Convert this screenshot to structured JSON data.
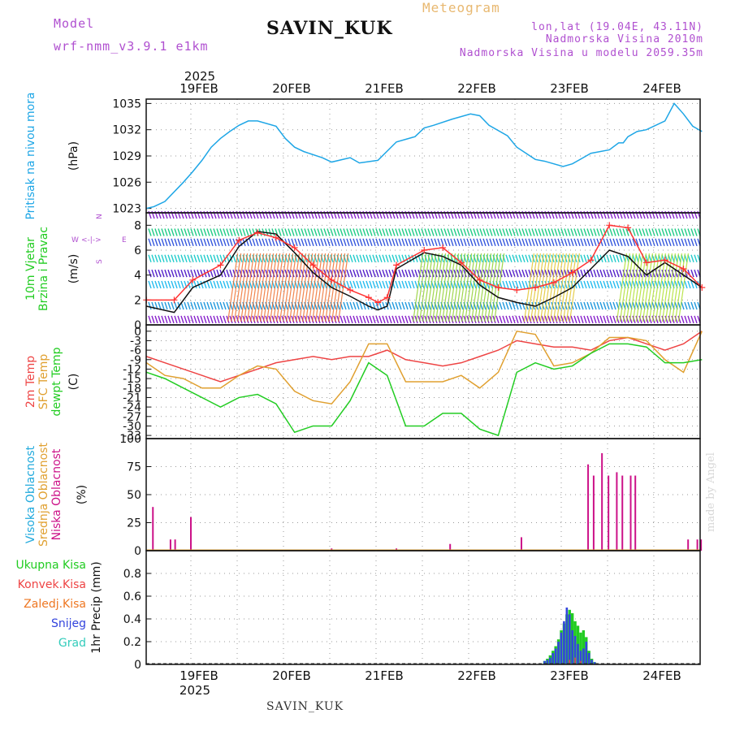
{
  "header": {
    "model_label": "Model",
    "model_value": "wrf-nmm_v3.9.1 e1km",
    "title": "SAVIN_KUK",
    "product": "Meteogram",
    "loc_line1": "lon,lat (19.04E, 43.11N)",
    "loc_line2": "Nadmorska Visina 2010m",
    "loc_line3": "Nadmorska Visina u modelu 2059.35m",
    "year_top": "2025",
    "year_bottom": "2025",
    "footer_station": "SAVIN_KUK",
    "credit": "made by Angel"
  },
  "colors": {
    "pressure": "#1ea6e6",
    "t2m": "#ee4444",
    "tsfc": "#e0a030",
    "dewpt": "#22cc22",
    "high_cloud": "#22aadd",
    "mid_cloud": "#e0a030",
    "low_cloud": "#cc1188",
    "total_precip": "#22cc22",
    "conv_precip": "#ee4444",
    "frozen_precip": "#ee7722",
    "snow": "#3344dd",
    "graupel": "#33ccbb",
    "gust_line": "#ff3333",
    "wind_line": "#111111"
  },
  "chart_data": [
    {
      "type": "line",
      "panel": "pressure",
      "ylabel_lines": [
        "Pritisak na nivou mora"
      ],
      "unit": "(hPa)",
      "ylim": [
        1022.5,
        1035.5
      ],
      "yticks": [
        "1023",
        "1026",
        "1029",
        "1032",
        "1035"
      ],
      "x_days": [
        "19FEB",
        "20FEB",
        "21FEB",
        "22FEB",
        "23FEB",
        "24FEB"
      ],
      "grid": true,
      "series": [
        {
          "x": [
            0,
            0.08,
            0.2,
            0.4,
            0.5,
            0.6,
            0.7,
            0.8,
            0.9,
            1.0,
            1.1,
            1.2,
            1.4,
            1.5,
            1.6,
            1.7,
            1.9,
            2.0,
            2.2,
            2.3,
            2.5,
            2.7,
            2.9,
            3.0,
            3.1,
            3.3,
            3.5,
            3.6,
            3.7,
            3.9,
            4.0,
            4.1,
            4.2,
            4.3,
            4.5,
            4.6,
            4.7,
            4.8,
            5.0,
            5.1,
            5.15,
            5.2,
            5.3,
            5.4,
            5.6,
            5.7,
            5.8,
            5.9,
            6.0
          ],
          "y": [
            1023.0,
            1023.2,
            1023.8,
            1026.0,
            1027.2,
            1028.5,
            1030.0,
            1031.0,
            1031.8,
            1032.5,
            1033.0,
            1033.0,
            1032.4,
            1031.0,
            1030.0,
            1029.5,
            1028.8,
            1028.3,
            1028.8,
            1028.2,
            1028.5,
            1030.6,
            1031.2,
            1032.2,
            1032.5,
            1033.2,
            1033.8,
            1033.6,
            1032.5,
            1031.3,
            1030.0,
            1029.3,
            1028.6,
            1028.4,
            1027.8,
            1028.1,
            1028.7,
            1029.3,
            1029.7,
            1030.5,
            1030.5,
            1031.2,
            1031.8,
            1032.0,
            1033.0,
            1035.0,
            1033.8,
            1032.4,
            1031.8
          ]
        }
      ]
    },
    {
      "type": "line",
      "panel": "wind",
      "ylabel_lines": [
        "10m Vjetar",
        "Brzina i Pravac"
      ],
      "unit": "(m/s)",
      "ylim": [
        0,
        9
      ],
      "yticks": [
        "0",
        "2",
        "4",
        "6",
        "8"
      ],
      "compass": {
        "n": "N",
        "s": "S",
        "e": "E",
        "w": "W"
      },
      "grid": true,
      "series": [
        {
          "name": "wind_speed",
          "x": [
            0,
            0.3,
            0.5,
            0.8,
            1.0,
            1.2,
            1.4,
            1.6,
            1.8,
            2.0,
            2.2,
            2.4,
            2.5,
            2.6,
            2.7,
            3.0,
            3.2,
            3.4,
            3.6,
            3.8,
            4.0,
            4.2,
            4.4,
            4.6,
            4.8,
            5.0,
            5.2,
            5.4,
            5.6,
            5.8,
            6.0
          ],
          "y": [
            1.5,
            1.0,
            3.0,
            4.0,
            6.3,
            7.5,
            7.3,
            5.8,
            4.2,
            3.0,
            2.3,
            1.5,
            1.2,
            1.5,
            4.5,
            5.8,
            5.5,
            4.8,
            3.2,
            2.2,
            1.8,
            1.5,
            2.2,
            3.0,
            4.5,
            6.0,
            5.5,
            4.0,
            5.0,
            4.0,
            3.0
          ]
        },
        {
          "name": "gust",
          "x": [
            0,
            0.3,
            0.5,
            0.8,
            1.0,
            1.2,
            1.4,
            1.6,
            1.8,
            2.0,
            2.2,
            2.4,
            2.5,
            2.6,
            2.7,
            3.0,
            3.2,
            3.4,
            3.6,
            3.8,
            4.0,
            4.2,
            4.4,
            4.6,
            4.8,
            5.0,
            5.2,
            5.4,
            5.6,
            5.8,
            6.0
          ],
          "y": [
            2.0,
            2.0,
            3.6,
            4.8,
            6.8,
            7.4,
            7.0,
            6.2,
            4.8,
            3.6,
            2.8,
            2.2,
            1.8,
            2.2,
            4.8,
            6.0,
            6.2,
            5.0,
            3.6,
            3.0,
            2.8,
            3.0,
            3.4,
            4.2,
            5.2,
            8.0,
            7.8,
            5.0,
            5.2,
            4.5,
            3.0
          ]
        }
      ]
    },
    {
      "type": "line",
      "panel": "temperature",
      "ylabel_lines": [
        "2m Temp",
        "SFC Temp",
        "dewpt Temp"
      ],
      "unit": "(C)",
      "ylim": [
        -34,
        2
      ],
      "yticks": [
        "0",
        "-3",
        "-6",
        "-9",
        "-12",
        "-15",
        "-18",
        "-21",
        "-24",
        "-27",
        "-30",
        "-33"
      ],
      "grid": true,
      "series": [
        {
          "name": "2m Temp",
          "x": [
            0,
            0.2,
            0.4,
            0.6,
            0.8,
            1.0,
            1.2,
            1.4,
            1.6,
            1.8,
            2.0,
            2.2,
            2.4,
            2.6,
            2.8,
            3.0,
            3.2,
            3.4,
            3.6,
            3.8,
            4.0,
            4.2,
            4.4,
            4.6,
            4.8,
            5.0,
            5.2,
            5.4,
            5.6,
            5.8,
            6.0
          ],
          "y": [
            -8,
            -10,
            -12,
            -14,
            -16,
            -14,
            -12,
            -10,
            -9,
            -8,
            -9,
            -8,
            -8,
            -6,
            -9,
            -10,
            -11,
            -10,
            -8,
            -6,
            -3,
            -4,
            -5,
            -5,
            -6,
            -3,
            -2,
            -4,
            -6,
            -4,
            0
          ]
        },
        {
          "name": "SFC Temp",
          "x": [
            0,
            0.2,
            0.4,
            0.6,
            0.8,
            1.0,
            1.2,
            1.4,
            1.6,
            1.8,
            2.0,
            2.2,
            2.4,
            2.6,
            2.8,
            3.0,
            3.2,
            3.4,
            3.6,
            3.8,
            4.0,
            4.2,
            4.4,
            4.6,
            4.8,
            5.0,
            5.2,
            5.4,
            5.6,
            5.8,
            6.0
          ],
          "y": [
            -10,
            -14,
            -15,
            -18,
            -18,
            -14,
            -11,
            -12,
            -19,
            -22,
            -23,
            -16,
            -4,
            -4,
            -16,
            -16,
            -16,
            -14,
            -18,
            -13,
            0,
            -1,
            -11,
            -10,
            -7,
            -2,
            -2,
            -3,
            -9,
            -13,
            0
          ]
        },
        {
          "name": "dewpt Temp",
          "x": [
            0,
            0.2,
            0.4,
            0.6,
            0.8,
            1.0,
            1.2,
            1.4,
            1.6,
            1.8,
            2.0,
            2.2,
            2.4,
            2.6,
            2.8,
            3.0,
            3.2,
            3.4,
            3.6,
            3.8,
            4.0,
            4.2,
            4.4,
            4.6,
            4.8,
            5.0,
            5.2,
            5.4,
            5.6,
            5.8,
            6.0
          ],
          "y": [
            -13,
            -15,
            -18,
            -21,
            -24,
            -21,
            -20,
            -23,
            -32,
            -30,
            -30,
            -22,
            -10,
            -14,
            -30,
            -30,
            -26,
            -26,
            -31,
            -33,
            -13,
            -10,
            -12,
            -11,
            -7,
            -4,
            -4,
            -5,
            -10,
            -10,
            -9
          ]
        }
      ]
    },
    {
      "type": "bar",
      "panel": "cloud",
      "ylabel_lines": [
        "Visoka Oblacnost",
        "Srednja Oblacnost",
        "Niska Oblacnost"
      ],
      "unit": "(%)",
      "ylim": [
        0,
        100
      ],
      "yticks": [
        "0",
        "25",
        "50",
        "75",
        "100"
      ],
      "grid": true,
      "series": [
        {
          "name": "Niska Oblacnost",
          "x": [
            0.07,
            0.26,
            0.31,
            0.48,
            2.0,
            2.7,
            3.28,
            4.05,
            4.77,
            4.83,
            4.92,
            4.99,
            5.08,
            5.14,
            5.23,
            5.28,
            5.85,
            5.95,
            5.99
          ],
          "y": [
            39,
            10,
            10,
            30,
            2,
            2,
            6,
            12,
            77,
            67,
            87,
            67,
            70,
            67,
            67,
            67,
            10,
            10,
            10
          ]
        }
      ]
    },
    {
      "type": "bar",
      "panel": "precip",
      "ylabel_lines": [
        "Ukupna Kisa",
        "Konvek.Kisa",
        "Zaledj.Kisa",
        "Snijeg",
        "Grad"
      ],
      "unit": "1hr Precip (mm)",
      "ylim": [
        0,
        1.0
      ],
      "yticks": [
        "0",
        "0.2",
        "0.4",
        "0.6",
        "0.8"
      ],
      "grid": true,
      "series": [
        {
          "name": "Ukupna Kisa",
          "x": [
            4.3,
            4.33,
            4.36,
            4.39,
            4.42,
            4.45,
            4.48,
            4.51,
            4.54,
            4.57,
            4.6,
            4.63,
            4.66,
            4.69,
            4.72,
            4.75,
            4.78,
            4.81,
            4.84
          ],
          "y": [
            0.03,
            0.05,
            0.08,
            0.12,
            0.16,
            0.22,
            0.3,
            0.36,
            0.44,
            0.48,
            0.45,
            0.38,
            0.34,
            0.28,
            0.3,
            0.24,
            0.12,
            0.05,
            0.02
          ]
        },
        {
          "name": "Snijeg",
          "x": [
            4.3,
            4.33,
            4.36,
            4.39,
            4.42,
            4.45,
            4.48,
            4.51,
            4.54,
            4.57,
            4.6,
            4.63,
            4.66,
            4.69,
            4.72,
            4.75,
            4.78,
            4.81,
            4.84
          ],
          "y": [
            0.03,
            0.04,
            0.06,
            0.1,
            0.14,
            0.2,
            0.28,
            0.38,
            0.5,
            0.44,
            0.3,
            0.25,
            0.18,
            0.12,
            0.14,
            0.2,
            0.1,
            0.04,
            0.02
          ]
        },
        {
          "name": "Konvek.Kisa",
          "x": [
            4.57,
            4.63,
            4.69
          ],
          "y": [
            0.04,
            0.06,
            0.03
          ]
        }
      ]
    }
  ]
}
